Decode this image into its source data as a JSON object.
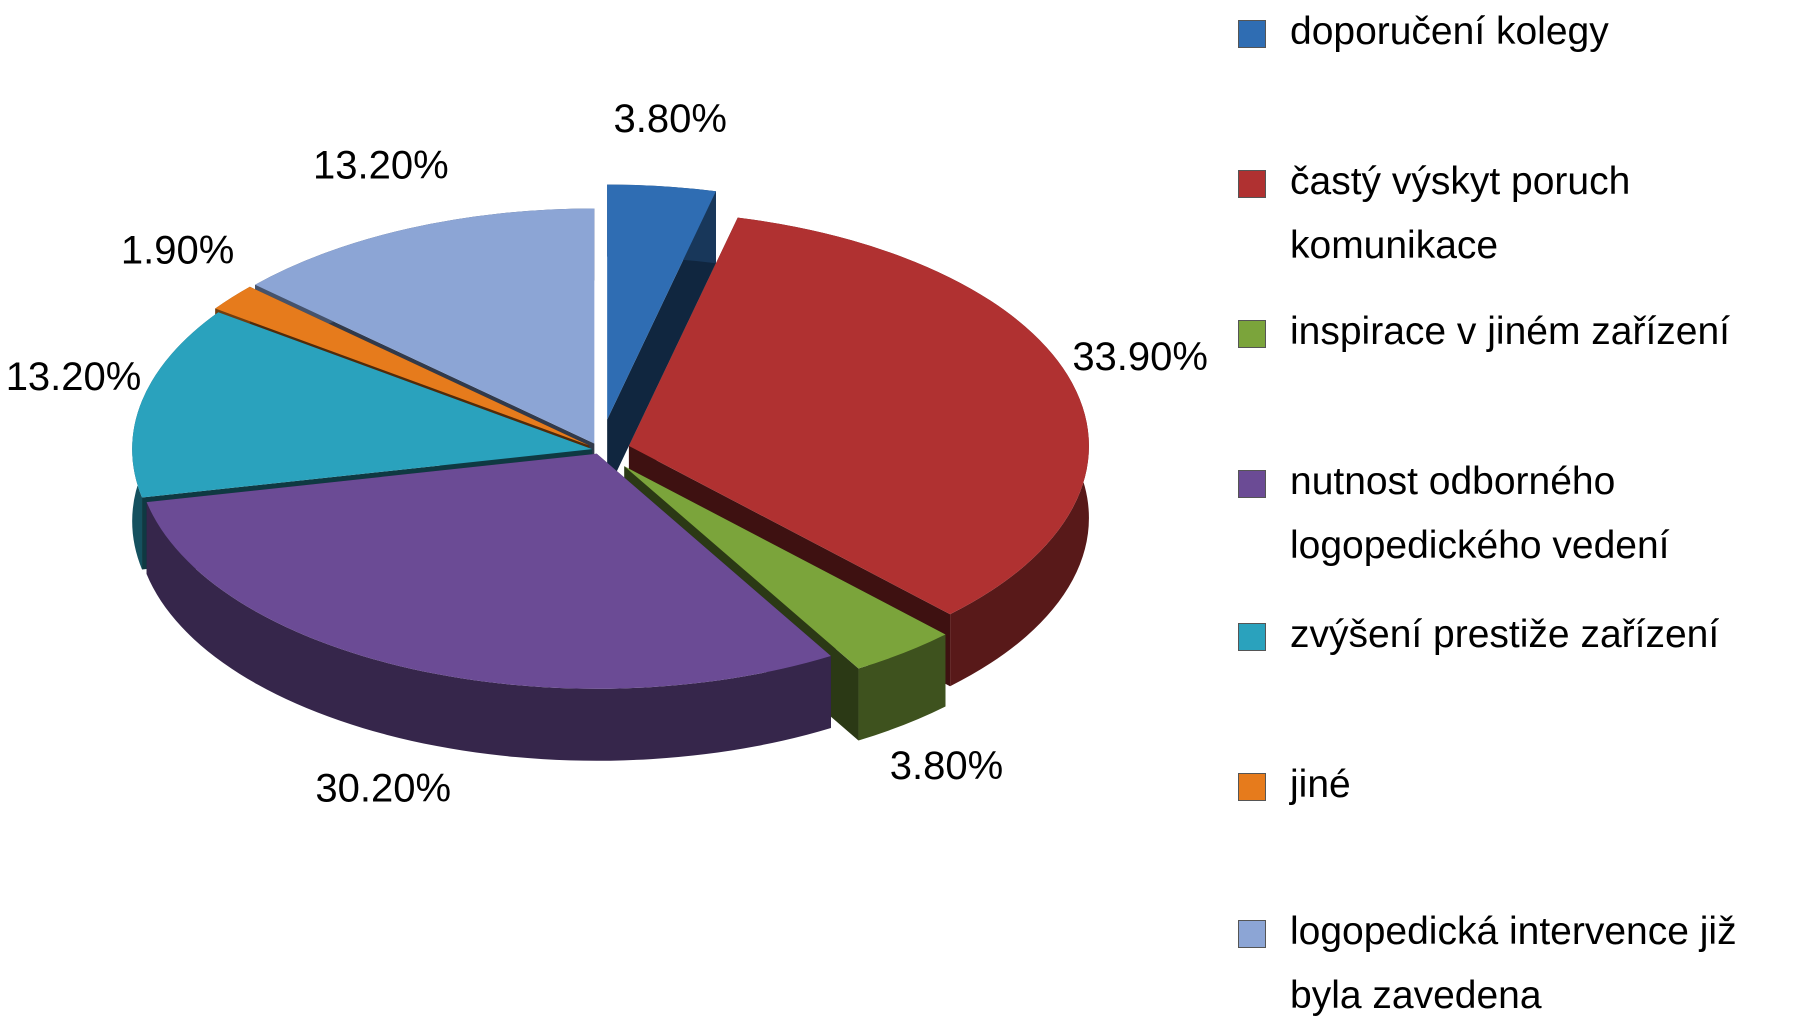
{
  "chart_data": {
    "type": "pie",
    "categories": [
      "doporučení kolegy",
      "častý výskyt poruch komunikace",
      "inspirace v jiném zařízení",
      "nutnost odborného logopedického vedení",
      "zvýšení prestiže zařízení",
      "jiné",
      "logopedická intervence již byla zavedena"
    ],
    "values": [
      3.8,
      33.9,
      3.8,
      30.2,
      13.2,
      1.9,
      13.2
    ],
    "value_labels": [
      "3.80%",
      "33.90%",
      "3.80%",
      "30.20%",
      "13.20%",
      "1.90%",
      "13.20%"
    ],
    "colors": [
      "#2f6db3",
      "#b03131",
      "#7ba43b",
      "#6b4b95",
      "#2aa2bd",
      "#e67b1c",
      "#8ca5d5"
    ],
    "legend": "right"
  }
}
